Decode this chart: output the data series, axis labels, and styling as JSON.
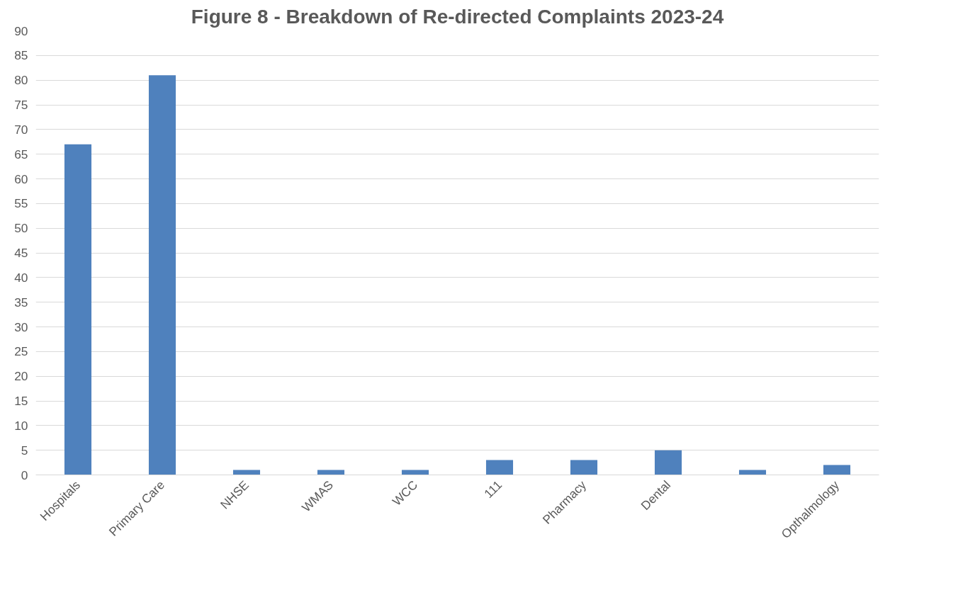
{
  "chart_data": {
    "type": "bar",
    "title": "Figure 8 - Breakdown of Re-directed Complaints 2023-24",
    "categories": [
      "Hospitals",
      "Primary Care",
      "NHSE",
      "WMAS",
      "WCC",
      "111",
      "Pharmacy",
      "Dental",
      null,
      "Opthalmology"
    ],
    "values": [
      67,
      81,
      1,
      1,
      1,
      3,
      3,
      5,
      1,
      2
    ],
    "color": "#4f81bd",
    "ylim": [
      0,
      90
    ],
    "yticks": [
      0,
      5,
      10,
      15,
      20,
      25,
      30,
      35,
      40,
      45,
      50,
      55,
      60,
      65,
      70,
      75,
      80,
      85,
      90
    ],
    "grid": "y"
  }
}
